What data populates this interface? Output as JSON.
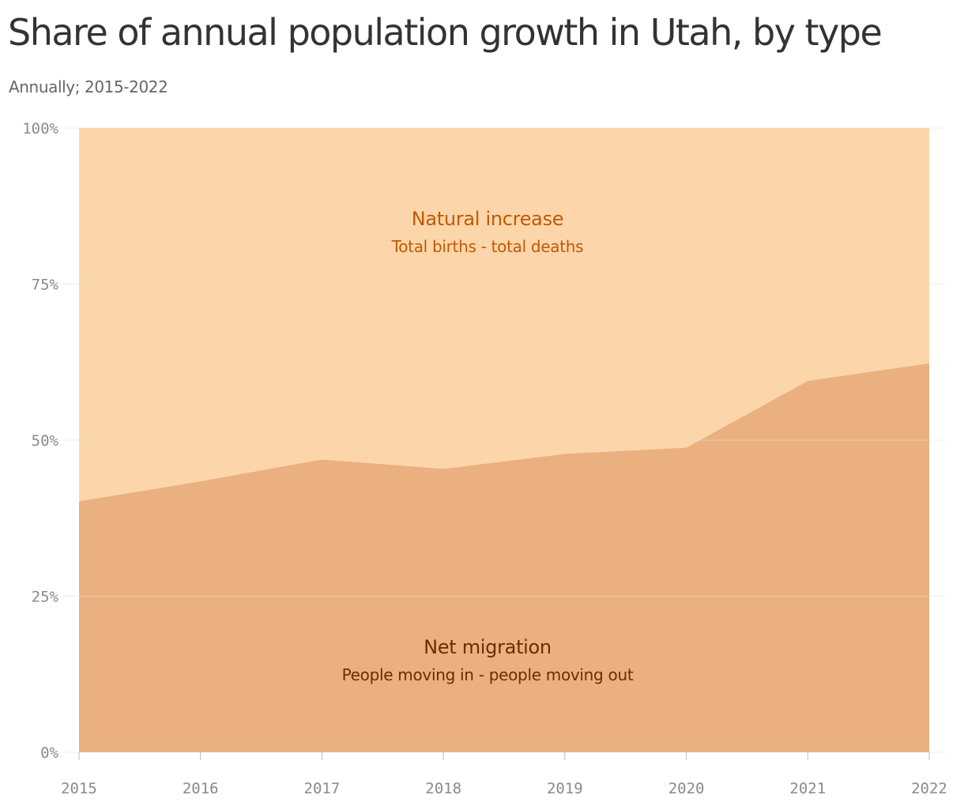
{
  "title": "Share of annual population growth in Utah, by type",
  "subtitle": "Annually; 2015-2022",
  "chart_data": {
    "type": "area",
    "stacked": true,
    "x": [
      "2015",
      "2016",
      "2017",
      "2018",
      "2019",
      "2020",
      "2021",
      "2022"
    ],
    "series": [
      {
        "name": "Net migration",
        "description": "People moving in - people moving out",
        "values": [
          40.2,
          43.4,
          46.9,
          45.4,
          47.8,
          48.8,
          59.5,
          62.3
        ],
        "color": "#ebb07f",
        "label_color": "#6b2d00"
      },
      {
        "name": "Natural increase",
        "description": "Total births - total deaths",
        "values": [
          59.8,
          56.6,
          53.1,
          54.6,
          52.2,
          51.2,
          40.5,
          37.7
        ],
        "color": "#fdd5ab",
        "label_color": "#c05a00"
      }
    ],
    "y_ticks": [
      "0%",
      "25%",
      "50%",
      "75%",
      "100%"
    ],
    "y_tick_values": [
      0,
      25,
      50,
      75,
      100
    ],
    "ylim": [
      0,
      100
    ],
    "grid": true,
    "xlabel": "",
    "ylabel": "",
    "colors": {
      "grid": "#e0e0e0",
      "tick_text": "#8a8a8a"
    }
  }
}
